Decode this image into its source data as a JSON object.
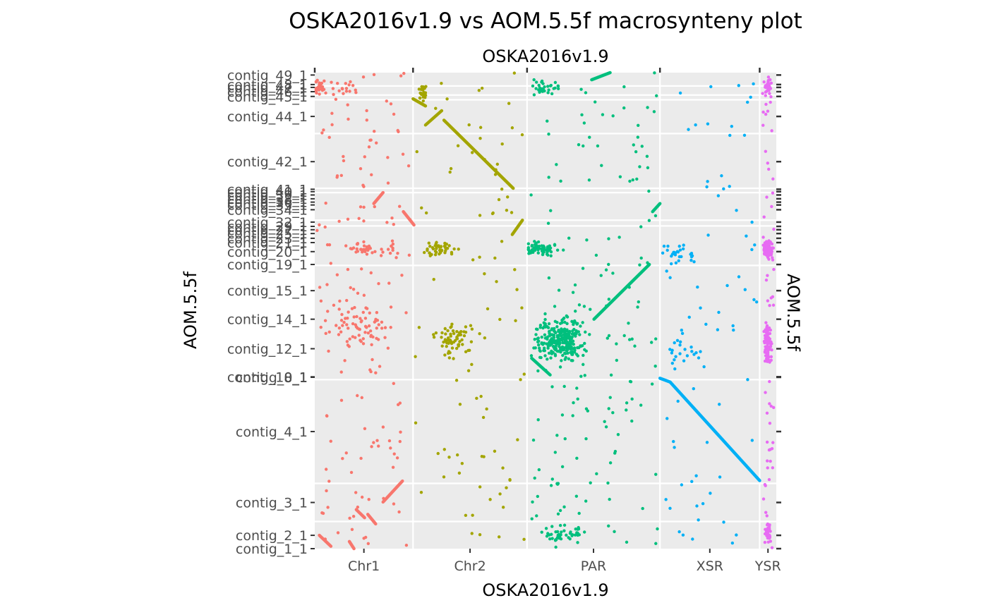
{
  "chart_data": {
    "type": "scatter",
    "title": "OSKA2016v1.9 vs AOM.5.5f macrosynteny plot",
    "top_axis_label": "OSKA2016v1.9",
    "xlabel": "OSKA2016v1.9",
    "ylabel": "AOM.5.5f",
    "right_axis_label": "AOM.5.5f",
    "x_chromosomes": [
      {
        "name": "Chr1",
        "start": 0,
        "end": 0.213,
        "color": "#F8766D"
      },
      {
        "name": "Chr2",
        "start": 0.213,
        "end": 0.46,
        "color": "#A3A500"
      },
      {
        "name": "PAR",
        "start": 0.46,
        "end": 0.748,
        "color": "#00BF7D"
      },
      {
        "name": "XSR",
        "start": 0.748,
        "end": 0.964,
        "color": "#00B0F6"
      },
      {
        "name": "YSR",
        "start": 0.964,
        "end": 1.0,
        "color": "#E76BF3"
      }
    ],
    "y_contig_labels": [
      {
        "name": "contig_1_1",
        "pos": 0.0
      },
      {
        "name": "contig_2_1",
        "pos": 0.028
      },
      {
        "name": "contig_3_1",
        "pos": 0.097
      },
      {
        "name": "contig_4_1",
        "pos": 0.246
      },
      {
        "name": "contig_8_1",
        "pos": 0.36
      },
      {
        "name": "contig_10_1",
        "pos": 0.361
      },
      {
        "name": "contig_12_1",
        "pos": 0.42
      },
      {
        "name": "contig_14_1",
        "pos": 0.482
      },
      {
        "name": "contig_15_1",
        "pos": 0.542
      },
      {
        "name": "contig_19_1",
        "pos": 0.597
      },
      {
        "name": "contig_20_1",
        "pos": 0.624
      },
      {
        "name": "contig_21_1",
        "pos": 0.643
      },
      {
        "name": "contig_23_1",
        "pos": 0.652
      },
      {
        "name": "contig_25_1",
        "pos": 0.662
      },
      {
        "name": "contig_27_1",
        "pos": 0.67
      },
      {
        "name": "contig_29_1",
        "pos": 0.677
      },
      {
        "name": "contig_32_1",
        "pos": 0.686
      },
      {
        "name": "contig_34_1",
        "pos": 0.712
      },
      {
        "name": "contig_35_1",
        "pos": 0.722
      },
      {
        "name": "contig_36_1",
        "pos": 0.728
      },
      {
        "name": "contig_38_1",
        "pos": 0.735
      },
      {
        "name": "contig_39_1",
        "pos": 0.743
      },
      {
        "name": "contig_40_1",
        "pos": 0.75
      },
      {
        "name": "contig_41_1",
        "pos": 0.755
      },
      {
        "name": "contig_42_1",
        "pos": 0.813
      },
      {
        "name": "contig_44_1",
        "pos": 0.908
      },
      {
        "name": "contig_45_1",
        "pos": 0.95
      },
      {
        "name": "contig_46_1",
        "pos": 0.96
      },
      {
        "name": "contig_47_1",
        "pos": 0.969
      },
      {
        "name": "contig_48_1",
        "pos": 0.975
      },
      {
        "name": "contig_49_1",
        "pos": 0.995
      }
    ],
    "y_gridlines": [
      0.057,
      0.137,
      0.355,
      0.595,
      0.678,
      0.69,
      0.748,
      0.757,
      0.872,
      0.943,
      0.953,
      0.972
    ],
    "synteny_segments": [
      {
        "chrom": "Chr1",
        "x0": 0.01,
        "y0": 0.028,
        "x1": 0.035,
        "y1": 0.005
      },
      {
        "chrom": "Chr1",
        "x0": 0.075,
        "y0": 0.015,
        "x1": 0.085,
        "y1": 0.0
      },
      {
        "chrom": "Chr1",
        "x0": 0.09,
        "y0": 0.082,
        "x1": 0.108,
        "y1": 0.065
      },
      {
        "chrom": "Chr1",
        "x0": 0.115,
        "y0": 0.072,
        "x1": 0.132,
        "y1": 0.052
      },
      {
        "chrom": "Chr1",
        "x0": 0.148,
        "y0": 0.098,
        "x1": 0.19,
        "y1": 0.142
      },
      {
        "chrom": "Chr1",
        "x0": 0.128,
        "y0": 0.725,
        "x1": 0.148,
        "y1": 0.748
      },
      {
        "chrom": "Chr1",
        "x0": 0.192,
        "y0": 0.708,
        "x1": 0.215,
        "y1": 0.68
      },
      {
        "chrom": "Chr2",
        "x0": 0.213,
        "y0": 0.945,
        "x1": 0.24,
        "y1": 0.93
      },
      {
        "chrom": "Chr2",
        "x0": 0.24,
        "y0": 0.89,
        "x1": 0.275,
        "y1": 0.92
      },
      {
        "chrom": "Chr2",
        "x0": 0.28,
        "y0": 0.9,
        "x1": 0.43,
        "y1": 0.757
      },
      {
        "chrom": "Chr2",
        "x0": 0.428,
        "y0": 0.66,
        "x1": 0.45,
        "y1": 0.69
      },
      {
        "chrom": "PAR",
        "x0": 0.6,
        "y0": 0.985,
        "x1": 0.64,
        "y1": 1.0
      },
      {
        "chrom": "PAR",
        "x0": 0.605,
        "y0": 0.482,
        "x1": 0.725,
        "y1": 0.597
      },
      {
        "chrom": "PAR",
        "x0": 0.732,
        "y0": 0.708,
        "x1": 0.748,
        "y1": 0.725
      },
      {
        "chrom": "PAR",
        "x0": 0.47,
        "y0": 0.4,
        "x1": 0.51,
        "y1": 0.365
      },
      {
        "chrom": "XSR",
        "x0": 0.748,
        "y0": 0.358,
        "x1": 0.77,
        "y1": 0.35
      },
      {
        "chrom": "XSR",
        "x0": 0.77,
        "y0": 0.35,
        "x1": 0.964,
        "y1": 0.143
      }
    ],
    "dense_clusters": [
      {
        "chrom": "Chr1",
        "x": 0.01,
        "y": 0.97,
        "n": 30,
        "sx": 0.015,
        "sy": 0.012
      },
      {
        "chrom": "Chr1",
        "x": 0.07,
        "y": 0.97,
        "n": 14,
        "sx": 0.02,
        "sy": 0.012
      },
      {
        "chrom": "Chr1",
        "x": 0.1,
        "y": 0.47,
        "n": 70,
        "sx": 0.06,
        "sy": 0.035
      },
      {
        "chrom": "Chr1",
        "x": 0.12,
        "y": 0.63,
        "n": 40,
        "sx": 0.06,
        "sy": 0.012
      },
      {
        "chrom": "Chr2",
        "x": 0.235,
        "y": 0.96,
        "n": 25,
        "sx": 0.01,
        "sy": 0.015
      },
      {
        "chrom": "Chr2",
        "x": 0.3,
        "y": 0.44,
        "n": 60,
        "sx": 0.03,
        "sy": 0.03
      },
      {
        "chrom": "Chr2",
        "x": 0.27,
        "y": 0.63,
        "n": 45,
        "sx": 0.025,
        "sy": 0.012
      },
      {
        "chrom": "PAR",
        "x": 0.53,
        "y": 0.44,
        "n": 260,
        "sx": 0.04,
        "sy": 0.035
      },
      {
        "chrom": "PAR",
        "x": 0.49,
        "y": 0.63,
        "n": 70,
        "sx": 0.03,
        "sy": 0.012
      },
      {
        "chrom": "PAR",
        "x": 0.5,
        "y": 0.97,
        "n": 30,
        "sx": 0.03,
        "sy": 0.012
      },
      {
        "chrom": "PAR",
        "x": 0.54,
        "y": 0.03,
        "n": 40,
        "sx": 0.04,
        "sy": 0.015
      },
      {
        "chrom": "XSR",
        "x": 0.79,
        "y": 0.62,
        "n": 25,
        "sx": 0.03,
        "sy": 0.015
      },
      {
        "chrom": "XSR",
        "x": 0.8,
        "y": 0.42,
        "n": 20,
        "sx": 0.03,
        "sy": 0.03
      },
      {
        "chrom": "YSR",
        "x": 0.982,
        "y": 0.63,
        "n": 160,
        "sx": 0.007,
        "sy": 0.012
      },
      {
        "chrom": "YSR",
        "x": 0.982,
        "y": 0.43,
        "n": 70,
        "sx": 0.006,
        "sy": 0.04
      },
      {
        "chrom": "YSR",
        "x": 0.982,
        "y": 0.03,
        "n": 40,
        "sx": 0.006,
        "sy": 0.02
      },
      {
        "chrom": "YSR",
        "x": 0.982,
        "y": 0.97,
        "n": 25,
        "sx": 0.006,
        "sy": 0.015
      }
    ],
    "scatter_density": {
      "Chr1": 140,
      "Chr2": 90,
      "PAR": 170,
      "XSR": 70,
      "YSR": 60
    },
    "xlim": [
      0,
      1
    ],
    "ylim": [
      0,
      1
    ],
    "grid": true,
    "legend": "none"
  }
}
